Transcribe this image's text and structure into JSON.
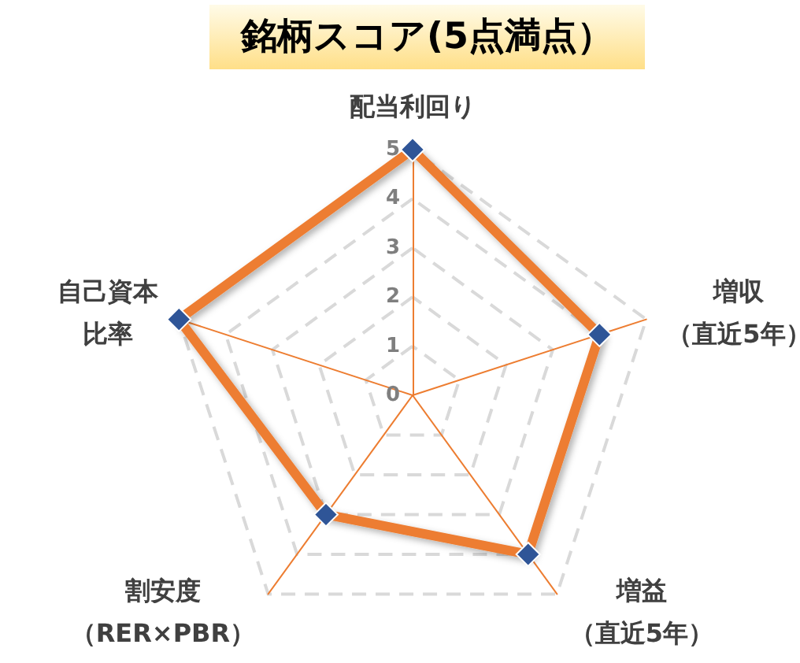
{
  "chart_data": {
    "type": "radar",
    "title": "銘柄スコア(5点満点）",
    "categories": [
      "配当利回り",
      "増収（直近5年）",
      "増益（直近5年）",
      "割安度（RER×PBR）",
      "自己資本比率"
    ],
    "series": [
      {
        "color": "#ed7d31",
        "colors": [
          "#2f5597",
          "#2f5597",
          "#2f5597",
          "#2f5597",
          "#2f5597"
        ],
        "values": [
          5,
          4,
          4,
          3,
          5
        ]
      }
    ],
    "ylim": [
      0,
      5
    ],
    "yticks": [
      0,
      1,
      2,
      3,
      4,
      5
    ],
    "grid": true,
    "marker": "diamond",
    "line_style": "solid"
  }
}
